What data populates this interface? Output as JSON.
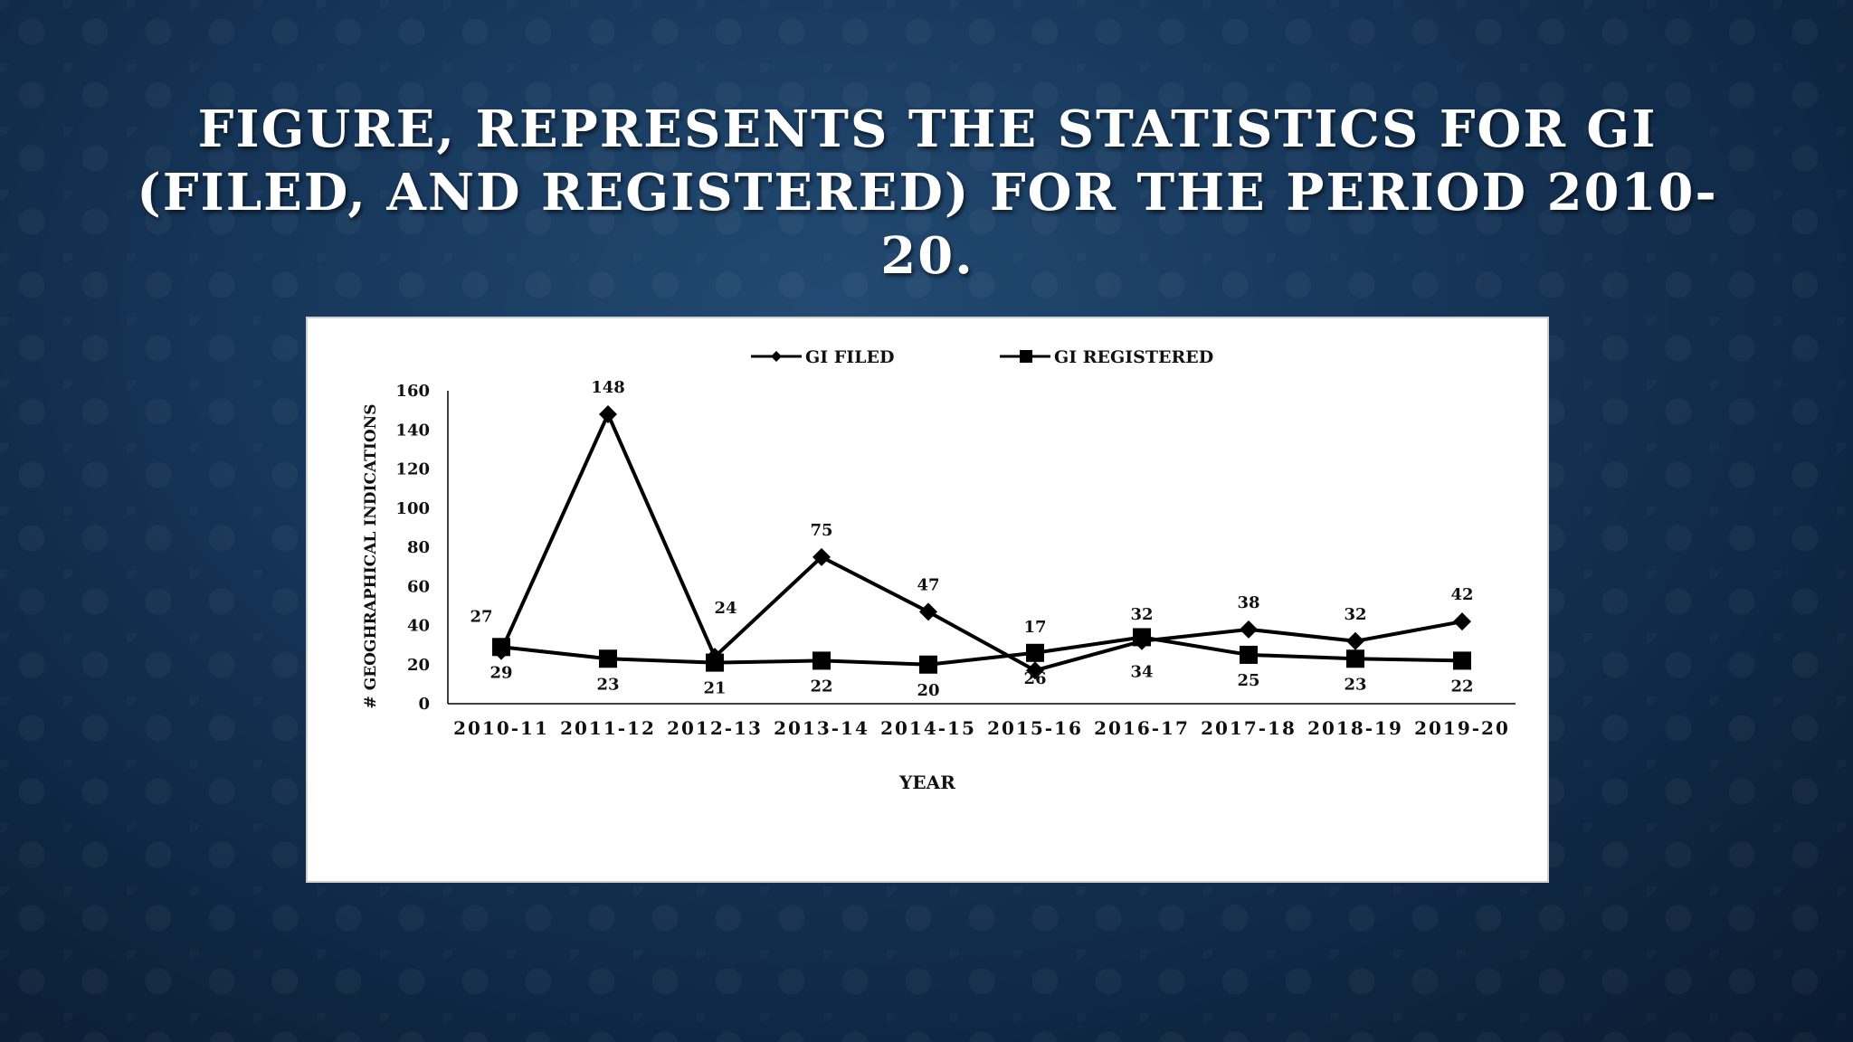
{
  "slide": {
    "title": "FIGURE, REPRESENTS THE STATISTICS FOR GI (FILED, AND REGISTERED) FOR THE PERIOD 2010-20."
  },
  "colors": {
    "background": "#163659",
    "title_text": "#ffffff",
    "chart_background": "#ffffff",
    "series_line": "#000000"
  },
  "chart_data": {
    "type": "line",
    "title": "",
    "xlabel": "YEAR",
    "ylabel": "# GEOGHRAPHICAL INDICATIONS",
    "categories": [
      "2010-11",
      "2011-12",
      "2012-13",
      "2013-14",
      "2014-15",
      "2015-16",
      "2016-17",
      "2017-18",
      "2018-19",
      "2019-20"
    ],
    "ylim": [
      0,
      160
    ],
    "yticks": [
      0,
      20,
      40,
      60,
      80,
      100,
      120,
      140,
      160
    ],
    "grid": false,
    "legend_position": "top",
    "series": [
      {
        "name": "GI FILED",
        "marker": "diamond",
        "values": [
          27,
          148,
          24,
          75,
          47,
          17,
          32,
          38,
          32,
          42
        ],
        "labels": [
          "27",
          "148",
          "24",
          "75",
          "47",
          "17",
          "32",
          "38",
          "32",
          "42"
        ]
      },
      {
        "name": "GI REGISTERED",
        "marker": "square",
        "values": [
          29,
          23,
          21,
          22,
          20,
          26,
          34,
          25,
          23,
          22
        ],
        "labels": [
          "29",
          "23",
          "21",
          "22",
          "20",
          "26",
          "34",
          "25",
          "23",
          "22"
        ]
      }
    ]
  }
}
